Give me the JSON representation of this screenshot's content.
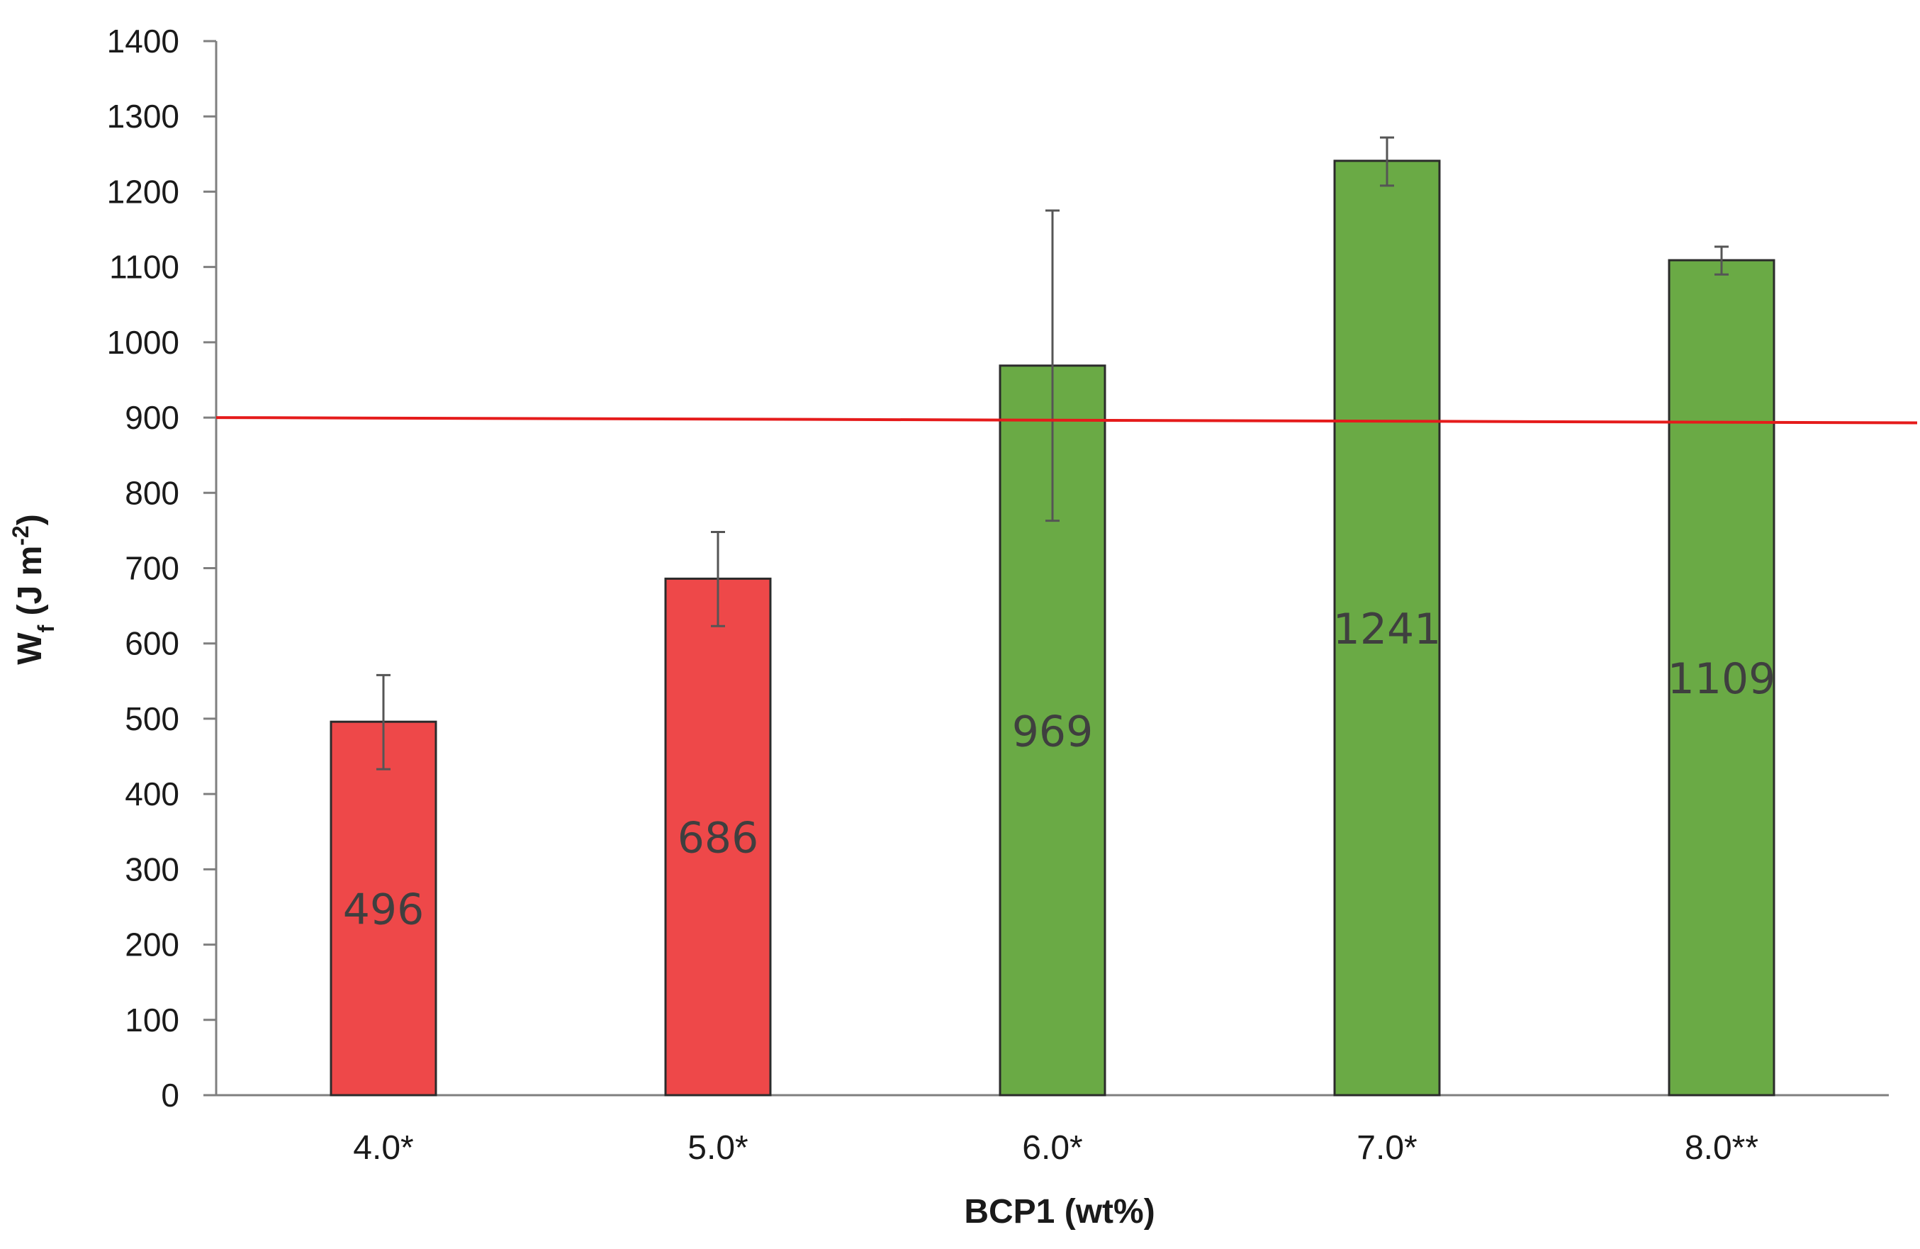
{
  "chart_data": {
    "type": "bar",
    "title": "",
    "xlabel": "BCP1 (wt%)",
    "ylabel": {
      "main": "W",
      "sub": "f",
      "unit_open": " (J m",
      "unit_sup": "-2",
      "unit_close": ")"
    },
    "ylim": [
      0,
      1400
    ],
    "yticks": [
      0,
      100,
      200,
      300,
      400,
      500,
      600,
      700,
      800,
      900,
      1000,
      1100,
      1200,
      1300,
      1400
    ],
    "grid": false,
    "legend": "none",
    "categories": [
      "4.0*",
      "5.0*",
      "6.0*",
      "7.0*",
      "8.0**"
    ],
    "values": [
      496,
      686,
      969,
      1241,
      1109
    ],
    "value_labels": [
      "496",
      "686",
      "969",
      "1241",
      "1109"
    ],
    "error_low": [
      433,
      623,
      763,
      1208,
      1090
    ],
    "error_high": [
      558,
      748,
      1175,
      1272,
      1127
    ],
    "colors": [
      "#ee4849",
      "#ee4849",
      "#6aaa45",
      "#6aaa45",
      "#6aaa45"
    ],
    "reference_line": {
      "y_start": 900,
      "y_end": 893,
      "color": "#e51b1b"
    }
  }
}
